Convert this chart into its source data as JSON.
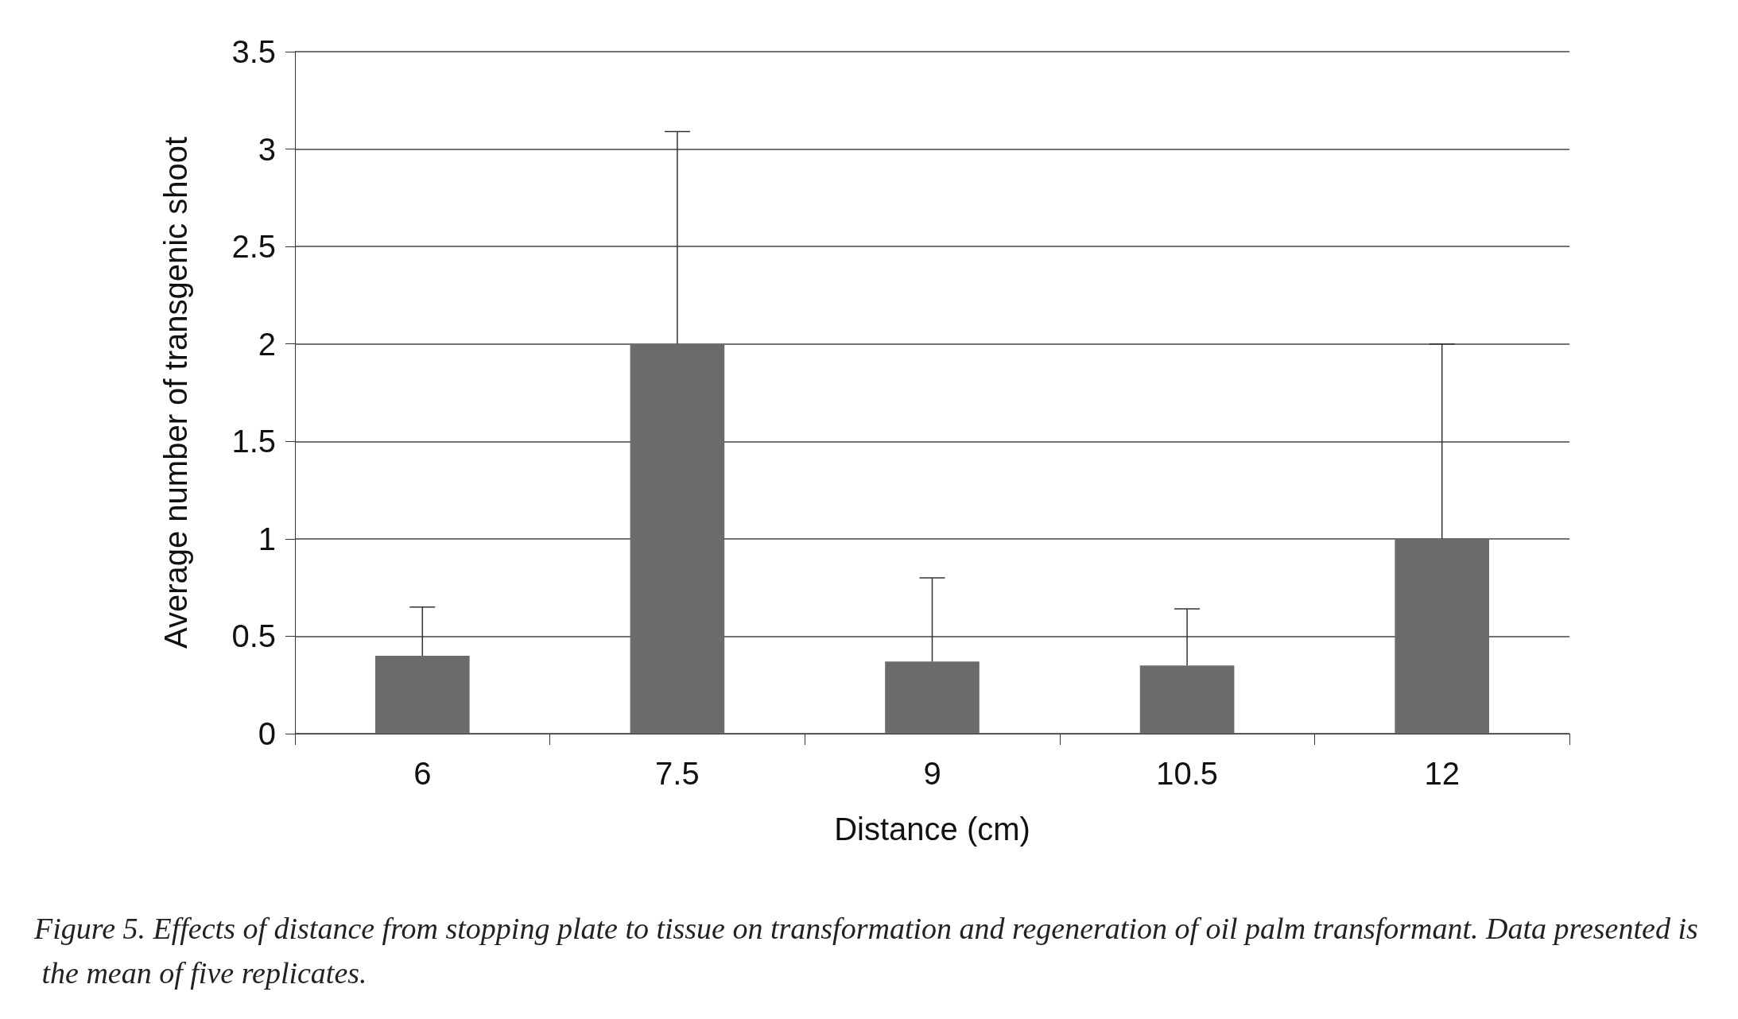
{
  "chart_data": {
    "type": "bar",
    "xlabel": "Distance (cm)",
    "ylabel": "Average number of transgenic shoot",
    "categories": [
      "6",
      "7.5",
      "9",
      "10.5",
      "12"
    ],
    "values": [
      0.4,
      2,
      0.37,
      0.35,
      1
    ],
    "errors": [
      [
        0.4,
        0.65
      ],
      [
        2,
        3.09
      ],
      [
        0.37,
        0.8
      ],
      [
        0.35,
        0.64
      ],
      [
        1,
        2
      ]
    ],
    "color": "#6b6b6e",
    "ylim": [
      0,
      3.5
    ],
    "yticks": [
      0,
      0.5,
      1,
      1.5,
      2,
      2.5,
      3,
      3.5
    ],
    "grid": "y",
    "annotations": [
      "Figure 5. Effects of distance from stopping plate to tissue on transformation and regeneration of oil palm transformant. Data presented is the mean of five replicates."
    ]
  }
}
